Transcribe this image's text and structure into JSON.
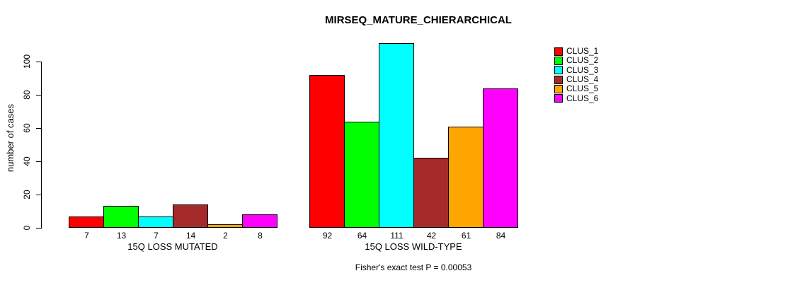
{
  "chart_data": {
    "type": "bar",
    "title": "MIRSEQ_MATURE_CHIERARCHICAL",
    "ylabel": "number of cases",
    "xlabel": "",
    "ylim": [
      0,
      111
    ],
    "yticks": [
      0,
      20,
      40,
      60,
      80,
      100
    ],
    "grid": false,
    "legend_position": "top-right",
    "annotation": "Fisher's exact test P = 0.00053",
    "categories": [
      "15Q LOSS MUTATED",
      "15Q LOSS WILD-TYPE"
    ],
    "series": [
      {
        "name": "CLUS_1",
        "color": "#FF0000",
        "values": [
          7,
          92
        ]
      },
      {
        "name": "CLUS_2",
        "color": "#00FF00",
        "values": [
          13,
          64
        ]
      },
      {
        "name": "CLUS_3",
        "color": "#00FFFF",
        "values": [
          7,
          111
        ]
      },
      {
        "name": "CLUS_4",
        "color": "#A52A2A",
        "values": [
          14,
          42
        ]
      },
      {
        "name": "CLUS_5",
        "color": "#FFA500",
        "values": [
          2,
          61
        ]
      },
      {
        "name": "CLUS_6",
        "color": "#FF00FF",
        "values": [
          8,
          84
        ]
      }
    ],
    "bar_value_labels": true,
    "axis_color": "#000000",
    "text_color": "#000000",
    "background_color": "#FFFFFF"
  }
}
